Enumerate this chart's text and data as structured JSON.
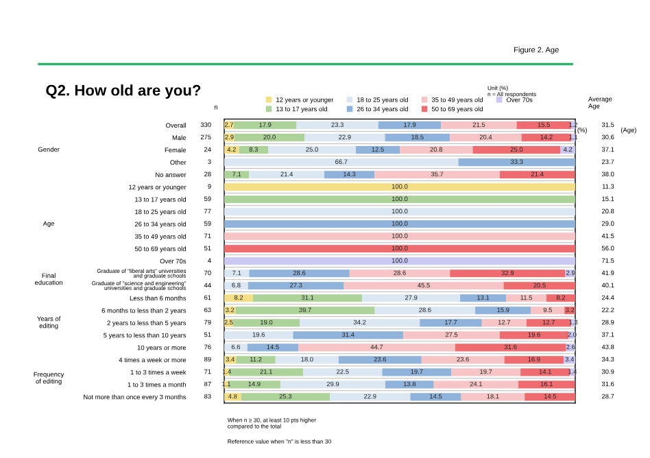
{
  "chart_data": {
    "type": "bar",
    "orientation": "horizontal",
    "stacked": true,
    "title": "Q2. How old are you?",
    "categories": [
      "Overall",
      "Male",
      "Female",
      "Other",
      "No answer",
      "12 years or younger",
      "13 to 17 years old",
      "18 to 25 years old",
      "26 to 34 years old",
      "35 to 49 years old",
      "50 to 69 years old",
      "Over 70s",
      "Graduate of \"liberal arts\" universities\nand graduate schools",
      "Graduate of \"science and engineering\"\nuniversities and graduate schools",
      "Less than 6 months",
      "6 months to less than 2 years",
      "2 years to less than 5 years",
      "5 years to less than 10 years",
      "10 years or more",
      "4 times a week or more",
      "1 to 3 times a week",
      "1 to 3 times a month",
      "Not more than once every 3 months"
    ],
    "series": [
      {
        "name": "12 years or younger",
        "color": "#f5df86",
        "values": [
          2.7,
          2.9,
          4.2,
          null,
          null,
          100.0,
          null,
          null,
          null,
          null,
          null,
          null,
          null,
          null,
          8.2,
          3.2,
          2.5,
          null,
          null,
          3.4,
          1.4,
          1.1,
          4.8
        ],
        "value_labels": [
          "2.7",
          "2.9",
          "4.2",
          null,
          null,
          "100.0",
          null,
          null,
          null,
          null,
          null,
          null,
          null,
          null,
          "8.2",
          "3.2",
          "2.5",
          null,
          null,
          "3.4",
          "1.4",
          "1.1",
          "4.8"
        ]
      },
      {
        "name": "13 to 17 years old",
        "color": "#aed39a",
        "values": [
          17.9,
          20.0,
          8.3,
          null,
          7.1,
          null,
          100.0,
          null,
          null,
          null,
          null,
          null,
          null,
          null,
          31.1,
          39.7,
          19.0,
          null,
          null,
          11.2,
          21.1,
          14.9,
          25.3
        ],
        "value_labels": [
          "17.9",
          "20.0",
          "8.3",
          null,
          "7.1",
          null,
          "100.0",
          null,
          null,
          null,
          null,
          null,
          null,
          null,
          "31.1",
          "39.7",
          "19.0",
          null,
          null,
          "11.2",
          "21.1",
          "14.9",
          "25.3"
        ]
      },
      {
        "name": "18 to 25 years old",
        "color": "#dbe7f3",
        "values": [
          23.3,
          22.9,
          25.0,
          66.7,
          21.4,
          null,
          null,
          100.0,
          null,
          null,
          null,
          null,
          7.1,
          6.8,
          27.9,
          28.6,
          34.2,
          19.6,
          6.6,
          18.0,
          22.5,
          29.9,
          22.9
        ],
        "value_labels": [
          "23.3",
          "22.9",
          "25.0",
          "66.7",
          "21.4",
          null,
          null,
          "100.0",
          null,
          null,
          null,
          null,
          "7.1",
          "6.8",
          "27.9",
          "28.6",
          "34.2",
          "19.6",
          "6.6",
          "18.0",
          "22.5",
          "29.9",
          "22.9"
        ]
      },
      {
        "name": "26 to 34 years old",
        "color": "#8fb3db",
        "values": [
          17.9,
          18.5,
          12.5,
          33.3,
          14.3,
          null,
          null,
          null,
          100.0,
          null,
          null,
          null,
          28.6,
          27.3,
          13.1,
          15.9,
          17.7,
          31.4,
          14.5,
          23.6,
          19.7,
          13.8,
          14.5
        ],
        "value_labels": [
          "17.9",
          "18.5",
          "12.5",
          "33.3",
          "14.3",
          null,
          null,
          null,
          "100.0",
          null,
          null,
          null,
          "28.6",
          "27.3",
          "13.1",
          "15.9",
          "17.7",
          "31.4",
          "14.5",
          "23.6",
          "19.7",
          "13.8",
          "14.5"
        ]
      },
      {
        "name": "35 to 49 years old",
        "color": "#f7c5c6",
        "values": [
          21.5,
          20.4,
          20.8,
          null,
          35.7,
          null,
          null,
          null,
          null,
          100.0,
          null,
          null,
          28.6,
          45.5,
          11.5,
          9.5,
          12.7,
          27.5,
          44.7,
          23.6,
          19.7,
          24.1,
          18.1
        ],
        "value_labels": [
          "21.5",
          "20.4",
          "20.8",
          null,
          "35.7",
          null,
          null,
          null,
          null,
          "100.0",
          null,
          null,
          "28.6",
          "45.5",
          "11.5",
          "9.5",
          "12.7",
          "27.5",
          "44.7",
          "23.6",
          "19.7",
          "24.1",
          "18.1"
        ]
      },
      {
        "name": "50 to 69 years old",
        "color": "#ee6c6f",
        "values": [
          15.5,
          14.2,
          25.0,
          null,
          21.4,
          null,
          null,
          null,
          null,
          null,
          100.0,
          null,
          32.9,
          20.5,
          8.2,
          3.2,
          12.7,
          19.6,
          31.6,
          16.9,
          14.1,
          16.1,
          14.5
        ],
        "value_labels": [
          "15.5",
          "14.2",
          "25.0",
          null,
          "21.4",
          null,
          null,
          null,
          null,
          null,
          "100.0",
          null,
          "32.9",
          "20.5",
          "8.2",
          "3.2",
          "12.7",
          "19.6",
          "31.6",
          "16.9",
          "14.1",
          "16.1",
          "14.5"
        ]
      },
      {
        "name": "Over 70s",
        "color": "#cbc8f3",
        "values": [
          1.2,
          1.1,
          4.2,
          null,
          null,
          null,
          null,
          null,
          null,
          null,
          null,
          100.0,
          2.9,
          null,
          null,
          null,
          1.3,
          2.0,
          2.6,
          3.4,
          1.4,
          null,
          null
        ],
        "value_labels": [
          "1.2",
          "1.1",
          "4.2",
          null,
          null,
          null,
          null,
          null,
          null,
          null,
          null,
          "100.0",
          "2.9",
          null,
          null,
          null,
          "1.3",
          "2.0",
          "2.6",
          "3.4",
          "1.4",
          null,
          null
        ]
      }
    ],
    "xlim": [
      0,
      100
    ],
    "legend": "top",
    "grid": false,
    "annotations": [
      "330",
      "275",
      "24",
      "3",
      "28",
      "9",
      "59",
      "77",
      "59",
      "71",
      "51",
      "4",
      "70",
      "44",
      "61",
      "63",
      "79",
      "51",
      "76",
      "89",
      "71",
      "87",
      "83",
      "31.5",
      "30.6",
      "37.1",
      "23.7",
      "38.0",
      "11.3",
      "15.1",
      "20.8",
      "29.0",
      "41.5",
      "56.0",
      "71.5",
      "41.9",
      "40.1",
      "24.4",
      "22.2",
      "28.9",
      "37.1",
      "43.8",
      "34.3",
      "30.9",
      "31.6",
      "28.7",
      "Gender",
      "Age",
      "Final\neducation",
      "Years of\nediting",
      "Frequency\nof editing",
      "Figure 2. Age",
      "Unit (%)\nn = All respondents",
      "n",
      "Average\nAge",
      "(%)",
      "(Age)",
      "When n ≥ 30, at least 10 pts higher\ncompared to the total",
      "Reference value when \"n\" is less than 30"
    ]
  }
}
